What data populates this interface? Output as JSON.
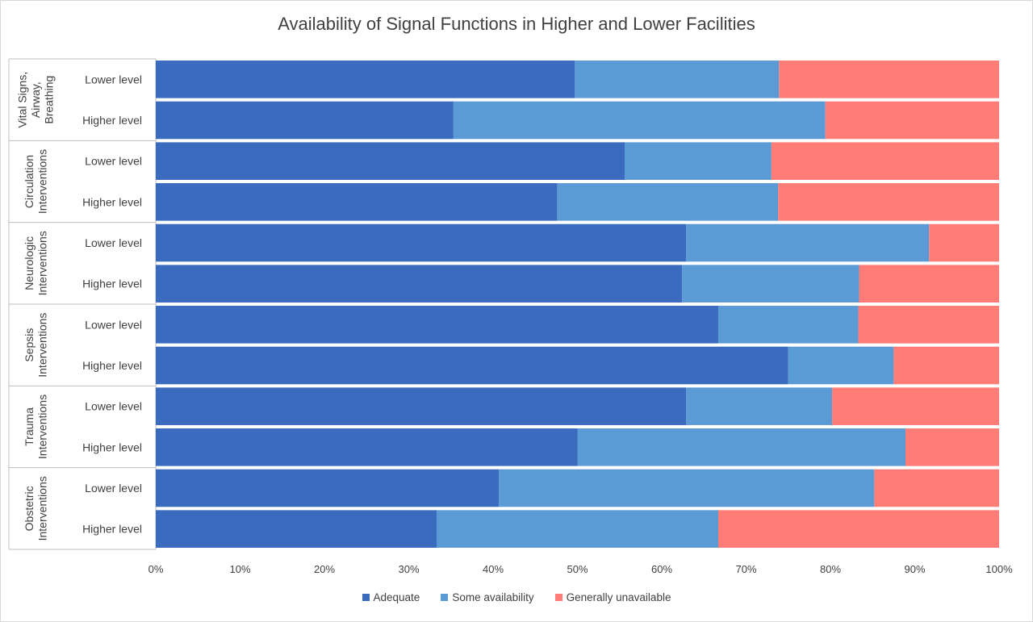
{
  "chart_data": {
    "type": "bar",
    "orientation": "horizontal",
    "stacked": true,
    "title": "Availability of Signal Functions in Higher and Lower Facilities",
    "xlim": [
      0,
      100
    ],
    "x_ticks": [
      "0%",
      "10%",
      "20%",
      "30%",
      "40%",
      "50%",
      "60%",
      "70%",
      "80%",
      "90%",
      "100%"
    ],
    "legend_position": "bottom",
    "groups": [
      {
        "name": "Vital Signs, Airway, Breathing",
        "label_lines": [
          "Vital Signs,",
          "Airway,",
          "Breathing"
        ],
        "categories": [
          "Lower level",
          "Higher level"
        ]
      },
      {
        "name": "Circulation Interventions",
        "label_lines": [
          "Circulation",
          "Interventions"
        ],
        "categories": [
          "Lower level",
          "Higher level"
        ]
      },
      {
        "name": "Neurologic Interventions",
        "label_lines": [
          "Neurologic",
          "Interventions"
        ],
        "categories": [
          "Lower level",
          "Higher level"
        ]
      },
      {
        "name": "Sepsis Interventions",
        "label_lines": [
          "Sepsis",
          "Interventions"
        ],
        "categories": [
          "Lower level",
          "Higher level"
        ]
      },
      {
        "name": "Trauma Interventions",
        "label_lines": [
          "Trauma",
          "Interventions"
        ],
        "categories": [
          "Lower level",
          "Higher level"
        ]
      },
      {
        "name": "Obstetric Interventions",
        "label_lines": [
          "Obstetric",
          "Interventions"
        ],
        "categories": [
          "Lower level",
          "Higher level"
        ]
      }
    ],
    "series": [
      {
        "name": "Adequate",
        "color": "#3a6bbf",
        "values": [
          49.7,
          35.3,
          55.6,
          47.6,
          62.9,
          62.4,
          66.7,
          75.0,
          62.9,
          50.0,
          40.7,
          33.3
        ]
      },
      {
        "name": "Some availability",
        "color": "#5b9bd5",
        "values": [
          24.2,
          44.1,
          17.4,
          26.2,
          28.8,
          21.0,
          16.6,
          12.5,
          17.3,
          38.9,
          44.5,
          33.4
        ]
      },
      {
        "name": "Generally unavailable",
        "color": "#ff7c77",
        "values": [
          26.1,
          20.6,
          27.0,
          26.2,
          8.3,
          16.6,
          16.7,
          12.5,
          19.8,
          11.1,
          14.8,
          33.3
        ]
      }
    ]
  }
}
